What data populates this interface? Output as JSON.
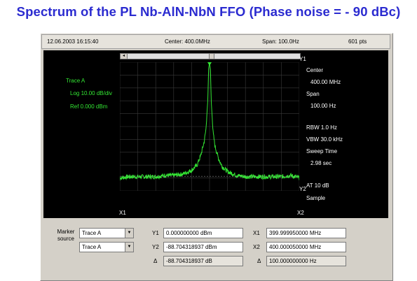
{
  "title": "Spectrum of the PL Nb-AlN-NbN FFO (Phase noise = - 90 dBc)",
  "infobar": {
    "timestamp": "12.06.2003 16:15:40",
    "center": "Center: 400.0MHz",
    "span": "Span: 100.0Hz",
    "points": "601 pts"
  },
  "trace_info": {
    "name": "Trace A",
    "log": "Log 10.00 dB/div",
    "ref": "Ref 0.000 dBm"
  },
  "right_info": {
    "center_label": "Center",
    "center_value": "400.00 MHz",
    "span_label": "Span",
    "span_value": "100.00 Hz",
    "rbw": "RBW 1.0 Hz",
    "vbw": "VBW 30.0 kHz",
    "sweep_label": "Sweep Time",
    "sweep_value": "2.98 sec",
    "at": "AT 10 dB",
    "sample": "Sample"
  },
  "markers": {
    "x1": "X1",
    "x2": "X2",
    "y1": "Y1",
    "y2": "Y2"
  },
  "marker_panel": {
    "source_label": "Marker\nsource",
    "source1": "Trace A",
    "source2": "Trace A",
    "y1_label": "Y1",
    "y1_value": "0.000000000 dBm",
    "y2_label": "Y2",
    "y2_value": "-88.704318937 dBm",
    "dy_label": "Δ",
    "dy_value": "-88.704318937 dB",
    "x1_label": "X1",
    "x1_value": "399.999950000 MHz",
    "x2_label": "X2",
    "x2_value": "400.000050000 MHz",
    "dx_label": "Δ",
    "dx_value": "100.000000000 Hz"
  },
  "chart_data": {
    "type": "line",
    "xlim": [
      399.99995,
      400.00005
    ],
    "x_unit": "MHz",
    "ylim": [
      -100,
      0
    ],
    "y_unit": "dBm",
    "grid": true,
    "trace_color": "#33e633",
    "series": [
      {
        "x_offsets_hz": [
          -50,
          -45,
          -40,
          -35,
          -30,
          -25,
          -20,
          -15,
          -10,
          -7,
          -5,
          -3,
          -2,
          -1,
          -0.5,
          0,
          0.5,
          1,
          2,
          3,
          5,
          7,
          10,
          15,
          20,
          25,
          30,
          35,
          40,
          45,
          50
        ],
        "values": [
          -90,
          -89,
          -89,
          -89,
          -89,
          -88,
          -88,
          -87,
          -84,
          -80,
          -73,
          -62,
          -52,
          -30,
          -5,
          0,
          -6,
          -32,
          -55,
          -65,
          -75,
          -81,
          -85,
          -88,
          -89,
          -89,
          -89,
          -89,
          -89,
          -88,
          -90
        ]
      }
    ]
  }
}
